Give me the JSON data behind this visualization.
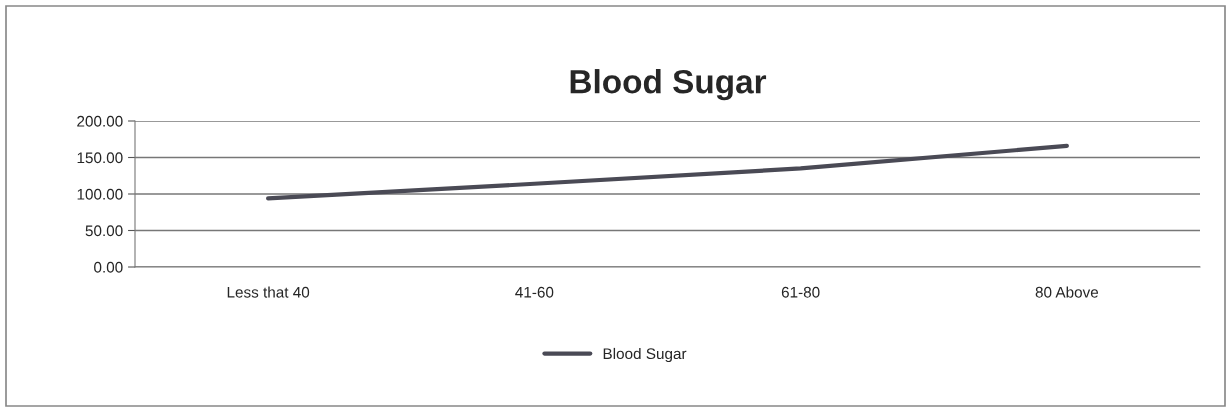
{
  "chart_data": {
    "type": "line",
    "title": "Blood Sugar",
    "categories": [
      "Less that 40",
      "41-60",
      "61-80",
      "80 Above"
    ],
    "series": [
      {
        "name": "Blood Sugar",
        "color": "#4a4a55",
        "values": [
          94,
          114,
          135,
          166
        ]
      }
    ],
    "ylim": [
      0,
      200
    ],
    "yticks": [
      {
        "value": 0,
        "label": "0.00"
      },
      {
        "value": 50,
        "label": "50.00"
      },
      {
        "value": 100,
        "label": "100.00"
      },
      {
        "value": 150,
        "label": "150.00"
      },
      {
        "value": 200,
        "label": "200.00"
      }
    ],
    "grid": "y",
    "legend": "bottom",
    "marker": "none",
    "line_style": "solid"
  }
}
